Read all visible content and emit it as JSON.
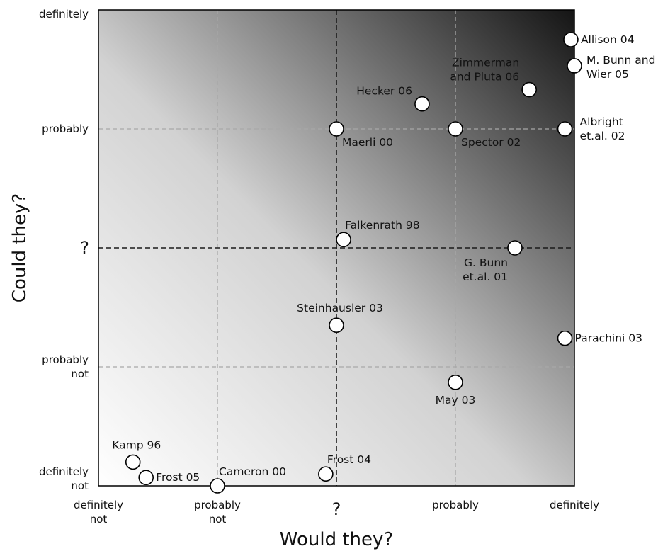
{
  "chart_data": {
    "type": "scatter",
    "title": "",
    "xlabel": "Would they?",
    "ylabel": "Could they?",
    "xlim": [
      -2,
      2
    ],
    "ylim": [
      -2,
      2
    ],
    "gradient": {
      "light": "#ffffff",
      "dark": "#141414"
    },
    "x_ticks": [
      {
        "value": -2,
        "lines": [
          "definitely",
          "not"
        ]
      },
      {
        "value": -1,
        "lines": [
          "probably",
          "not"
        ]
      },
      {
        "value": 0,
        "lines": [
          "?"
        ],
        "dashed": true
      },
      {
        "value": 1,
        "lines": [
          "probably"
        ]
      },
      {
        "value": 2,
        "lines": [
          "definitely"
        ]
      }
    ],
    "y_ticks": [
      {
        "value": 2,
        "lines": [
          "definitely"
        ]
      },
      {
        "value": 1,
        "lines": [
          "probably"
        ]
      },
      {
        "value": 0,
        "lines": [
          "?"
        ],
        "dashed": true
      },
      {
        "value": -1,
        "lines": [
          "probably",
          "not"
        ]
      },
      {
        "value": -2,
        "lines": [
          "definitely",
          "not"
        ]
      }
    ],
    "points": [
      {
        "lines": [
          "Allison 04"
        ],
        "x": 1.97,
        "y": 1.75,
        "label_pos": "right"
      },
      {
        "lines": [
          "M. Bunn and",
          "Wier 05"
        ],
        "x": 2.0,
        "y": 1.53,
        "label_pos": "right-down"
      },
      {
        "lines": [
          "Zimmerman",
          "and Pluta 06"
        ],
        "x": 1.62,
        "y": 1.33,
        "label_pos": "left-up"
      },
      {
        "lines": [
          "Hecker 06"
        ],
        "x": 0.72,
        "y": 1.21,
        "label_pos": "left-up"
      },
      {
        "lines": [
          "Maerli 00"
        ],
        "x": 0.0,
        "y": 1.0,
        "label_pos": "below-right"
      },
      {
        "lines": [
          "Spector 02"
        ],
        "x": 1.0,
        "y": 1.0,
        "label_pos": "below-right"
      },
      {
        "lines": [
          "Albright",
          "et.al. 02"
        ],
        "x": 1.92,
        "y": 1.0,
        "label_pos": "right-center"
      },
      {
        "lines": [
          "Falkenrath 98"
        ],
        "x": 0.06,
        "y": 0.07,
        "label_pos": "above-right"
      },
      {
        "lines": [
          "G. Bunn",
          "et.al. 01"
        ],
        "x": 1.5,
        "y": 0.0,
        "label_pos": "below-left"
      },
      {
        "lines": [
          "Steinhausler 03"
        ],
        "x": 0.0,
        "y": -0.65,
        "label_pos": "above"
      },
      {
        "lines": [
          "Parachini 03"
        ],
        "x": 1.92,
        "y": -0.76,
        "label_pos": "right"
      },
      {
        "lines": [
          "May 03"
        ],
        "x": 1.0,
        "y": -1.13,
        "label_pos": "below"
      },
      {
        "lines": [
          "Kamp 96"
        ],
        "x": -1.71,
        "y": -1.8,
        "label_pos": "above"
      },
      {
        "lines": [
          "Frost 05"
        ],
        "x": -1.6,
        "y": -1.93,
        "label_pos": "right"
      },
      {
        "lines": [
          "Frost 04"
        ],
        "x": -0.09,
        "y": -1.9,
        "label_pos": "above-right"
      },
      {
        "lines": [
          "Cameron 00"
        ],
        "x": -1.0,
        "y": -2.0,
        "label_pos": "above-right"
      }
    ]
  }
}
